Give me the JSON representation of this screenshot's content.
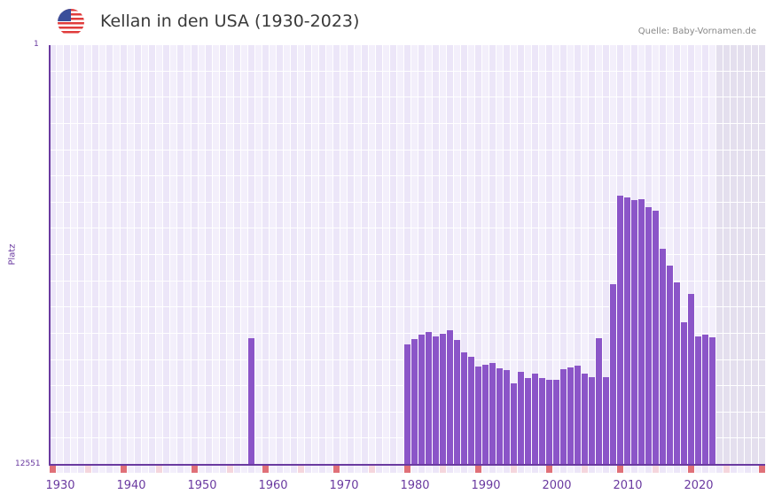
{
  "header": {
    "title": "Kellan in den USA (1930-2023)",
    "source": "Quelle: Baby-Vornamen.de",
    "flag_icon": "usa-flag-icon"
  },
  "colors": {
    "bar": "#8b55c8",
    "axis": "#6a3aa0",
    "decade_marker": "#e07078",
    "half_decade_marker": "#f5d6dd",
    "grid_bg_a": "#f3effb",
    "grid_bg_b": "#ece6f8",
    "future_shade": "#e4dfee"
  },
  "chart_data": {
    "type": "bar",
    "title": "Kellan in den USA (1930-2023)",
    "xlabel": "",
    "ylabel": "Platz",
    "y_inverted": true,
    "ylim": [
      1,
      12551
    ],
    "y_tick_labels": [
      "1",
      "12551"
    ],
    "x_tick_labels": [
      "1930",
      "1940",
      "1950",
      "1960",
      "1970",
      "1980",
      "1990",
      "2000",
      "2010",
      "2020"
    ],
    "x_range": [
      1928,
      2028
    ],
    "grid": true,
    "legend": null,
    "categories": [
      1956,
      1978,
      1979,
      1980,
      1981,
      1982,
      1983,
      1984,
      1985,
      1986,
      1987,
      1988,
      1989,
      1990,
      1991,
      1992,
      1993,
      1994,
      1995,
      1996,
      1997,
      1998,
      1999,
      2000,
      2001,
      2002,
      2003,
      2004,
      2005,
      2006,
      2007,
      2008,
      2009,
      2010,
      2011,
      2012,
      2013,
      2014,
      2015,
      2016,
      2017,
      2018,
      2019,
      2020,
      2021
    ],
    "values": [
      8765,
      8950,
      8791,
      8659,
      8579,
      8712,
      8632,
      8526,
      8818,
      9189,
      9321,
      9612,
      9559,
      9506,
      9665,
      9718,
      10115,
      9771,
      9956,
      9824,
      9956,
      10009,
      10009,
      9692,
      9638,
      9585,
      9824,
      9930,
      8765,
      9930,
      7150,
      4502,
      4555,
      4634,
      4608,
      4846,
      4952,
      6091,
      6594,
      7097,
      8288,
      7441,
      8712,
      8659,
      8738
    ]
  }
}
